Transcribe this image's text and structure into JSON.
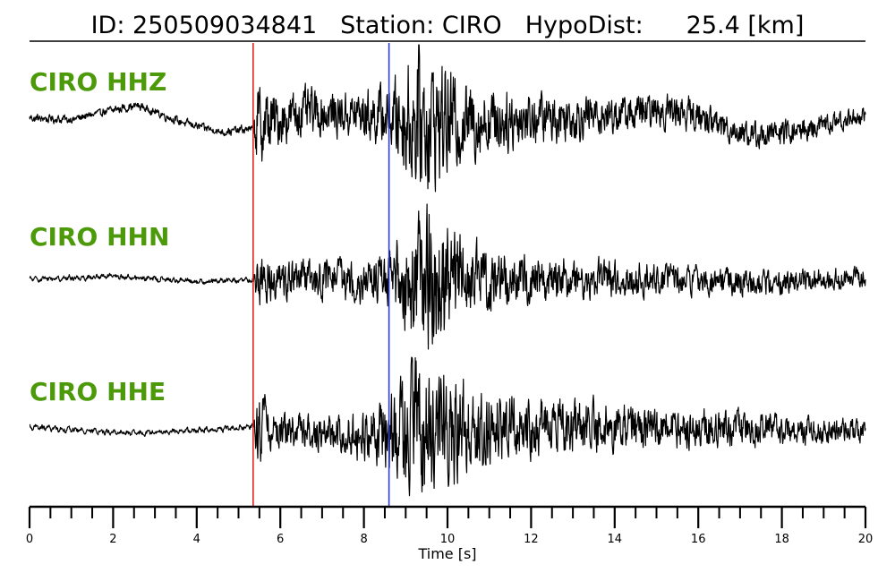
{
  "header": {
    "id_label": "ID:",
    "id_value": "250509034841",
    "station_label": "Station:",
    "station_value": "CIRO",
    "hypodist_label": "HypoDist:",
    "hypodist_value": "25.4",
    "hypodist_unit": "[km]"
  },
  "colors": {
    "label_green": "#4c9a0a",
    "p_pick": "#e8231f",
    "s_pick": "#2b3fd6",
    "trace": "#000000"
  },
  "chart_data": {
    "type": "line",
    "title": "ID: 250509034841   Station: CIRO   HypoDist:     25.4 [km]",
    "xlabel": "Time [s]",
    "xlim": [
      0,
      20
    ],
    "x_ticks_labeled": [
      0,
      2,
      4,
      6,
      8,
      10,
      12,
      14,
      16,
      18,
      20
    ],
    "minor_tick_step": 0.5,
    "grid": false,
    "picks": [
      {
        "phase": "P",
        "time": 5.35,
        "color": "#e8231f"
      },
      {
        "phase": "S",
        "time": 8.6,
        "color": "#2b3fd6"
      }
    ],
    "channels": [
      {
        "label": "CIRO HHZ",
        "envelope": [
          [
            0,
            0.05
          ],
          [
            5.35,
            0.05
          ],
          [
            5.45,
            0.55
          ],
          [
            6,
            0.33
          ],
          [
            7.5,
            0.28
          ],
          [
            8.6,
            0.4
          ],
          [
            9.3,
            1.0
          ],
          [
            10.5,
            0.5
          ],
          [
            12,
            0.35
          ],
          [
            14,
            0.25
          ],
          [
            20,
            0.12
          ]
        ],
        "low_freq": [
          [
            0,
            0.0
          ],
          [
            1,
            -0.02
          ],
          [
            2,
            0.12
          ],
          [
            2.6,
            0.18
          ],
          [
            3.6,
            -0.05
          ],
          [
            4.6,
            -0.2
          ],
          [
            5.35,
            -0.15
          ],
          [
            6.5,
            0.08
          ],
          [
            8,
            0.05
          ],
          [
            10,
            -0.05
          ],
          [
            12,
            0.0
          ],
          [
            14,
            0.05
          ],
          [
            15.5,
            0.12
          ],
          [
            17.3,
            -0.25
          ],
          [
            18.5,
            -0.18
          ],
          [
            20,
            0.05
          ]
        ]
      },
      {
        "label": "CIRO HHN",
        "envelope": [
          [
            0,
            0.03
          ],
          [
            5.35,
            0.03
          ],
          [
            5.45,
            0.35
          ],
          [
            6,
            0.22
          ],
          [
            8.6,
            0.3
          ],
          [
            9.4,
            1.0
          ],
          [
            10.5,
            0.45
          ],
          [
            12,
            0.3
          ],
          [
            14,
            0.22
          ],
          [
            20,
            0.12
          ]
        ],
        "low_freq": [
          [
            0,
            0.0
          ],
          [
            2,
            0.04
          ],
          [
            4,
            -0.03
          ],
          [
            6,
            0.0
          ],
          [
            10,
            0.0
          ],
          [
            16,
            0.0
          ],
          [
            18,
            -0.06
          ],
          [
            20,
            0.05
          ]
        ]
      },
      {
        "label": "CIRO HHE",
        "envelope": [
          [
            0,
            0.03
          ],
          [
            5.35,
            0.03
          ],
          [
            5.45,
            0.45
          ],
          [
            6,
            0.22
          ],
          [
            7.5,
            0.22
          ],
          [
            8.6,
            0.45
          ],
          [
            9.4,
            1.0
          ],
          [
            10.5,
            0.55
          ],
          [
            12,
            0.38
          ],
          [
            14,
            0.3
          ],
          [
            20,
            0.14
          ]
        ],
        "low_freq": [
          [
            0,
            0.0
          ],
          [
            2.5,
            -0.09
          ],
          [
            4.5,
            -0.03
          ],
          [
            5.35,
            0.0
          ],
          [
            7.5,
            -0.1
          ],
          [
            8,
            -0.14
          ],
          [
            9,
            0.0
          ],
          [
            12,
            0.03
          ],
          [
            16,
            0.0
          ],
          [
            20,
            -0.07
          ]
        ]
      }
    ]
  }
}
